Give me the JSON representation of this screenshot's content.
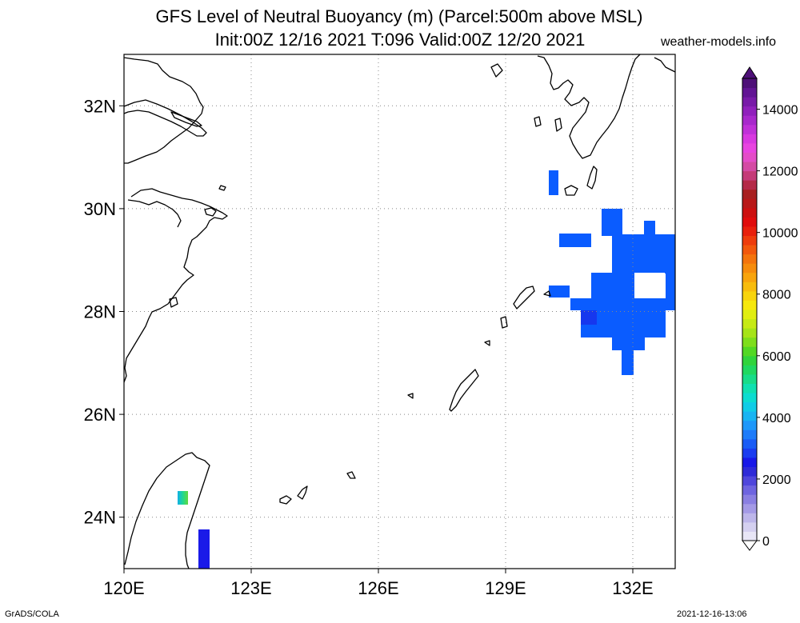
{
  "title_line1": "GFS Level of Neutral Buoyancy (m) (Parcel:500m above MSL)",
  "title_line2": "Init:00Z 12/16 2021 T:096 Valid:00Z 12/20 2021",
  "credit": "weather-models.info",
  "footer_left": "GrADS/COLA",
  "footer_right": "2021-12-16-13:06",
  "map": {
    "lon_range": [
      120,
      133
    ],
    "lat_range": [
      23,
      33
    ],
    "lon_ticks": [
      {
        "value": 120,
        "label": "120E"
      },
      {
        "value": 123,
        "label": "123E"
      },
      {
        "value": 126,
        "label": "126E"
      },
      {
        "value": 129,
        "label": "129E"
      },
      {
        "value": 132,
        "label": "132E"
      }
    ],
    "lat_ticks": [
      {
        "value": 32,
        "label": "32N"
      },
      {
        "value": 30,
        "label": "30N"
      },
      {
        "value": 28,
        "label": "28N"
      },
      {
        "value": 26,
        "label": "26N"
      },
      {
        "value": 24,
        "label": "24N"
      }
    ],
    "grid": true,
    "field_color": "#0a5cff",
    "field_color_dark": "#1637ee",
    "field_color_purple": "#1a1ae8"
  },
  "colorbar": {
    "range": [
      0,
      15000
    ],
    "labels": [
      {
        "value": 0,
        "label": "0"
      },
      {
        "value": 2000,
        "label": "2000"
      },
      {
        "value": 4000,
        "label": "4000"
      },
      {
        "value": 6000,
        "label": "6000"
      },
      {
        "value": 8000,
        "label": "8000"
      },
      {
        "value": 10000,
        "label": "10000"
      },
      {
        "value": 12000,
        "label": "12000"
      },
      {
        "value": 14000,
        "label": "14000"
      }
    ],
    "colors": [
      "#e8e6f6",
      "#d4d0f0",
      "#bdb6ea",
      "#a49ae6",
      "#8a7fe2",
      "#6e64e0",
      "#4f46dc",
      "#2e2ad8",
      "#1818e8",
      "#1a3cf0",
      "#1a5cf6",
      "#1e7cfa",
      "#1e98fa",
      "#18b4f2",
      "#10cce6",
      "#0cdcd0",
      "#10e0b0",
      "#18dc88",
      "#20d860",
      "#30d43c",
      "#52d824",
      "#7ede1c",
      "#a6e418",
      "#c6ea14",
      "#e0ee10",
      "#f6e80c",
      "#f8d40c",
      "#f8bc0c",
      "#f8a40c",
      "#f68c0c",
      "#f4740c",
      "#f2580c",
      "#ee3c0c",
      "#e8200c",
      "#e00c0c",
      "#cc1010",
      "#b81818",
      "#a82020",
      "#b42a48",
      "#c43a78",
      "#d44aa4",
      "#e44cc8",
      "#e844e0",
      "#d838e0",
      "#c030d8",
      "#a828cc",
      "#9020bc",
      "#781aa8",
      "#621494",
      "#4e1078"
    ]
  }
}
